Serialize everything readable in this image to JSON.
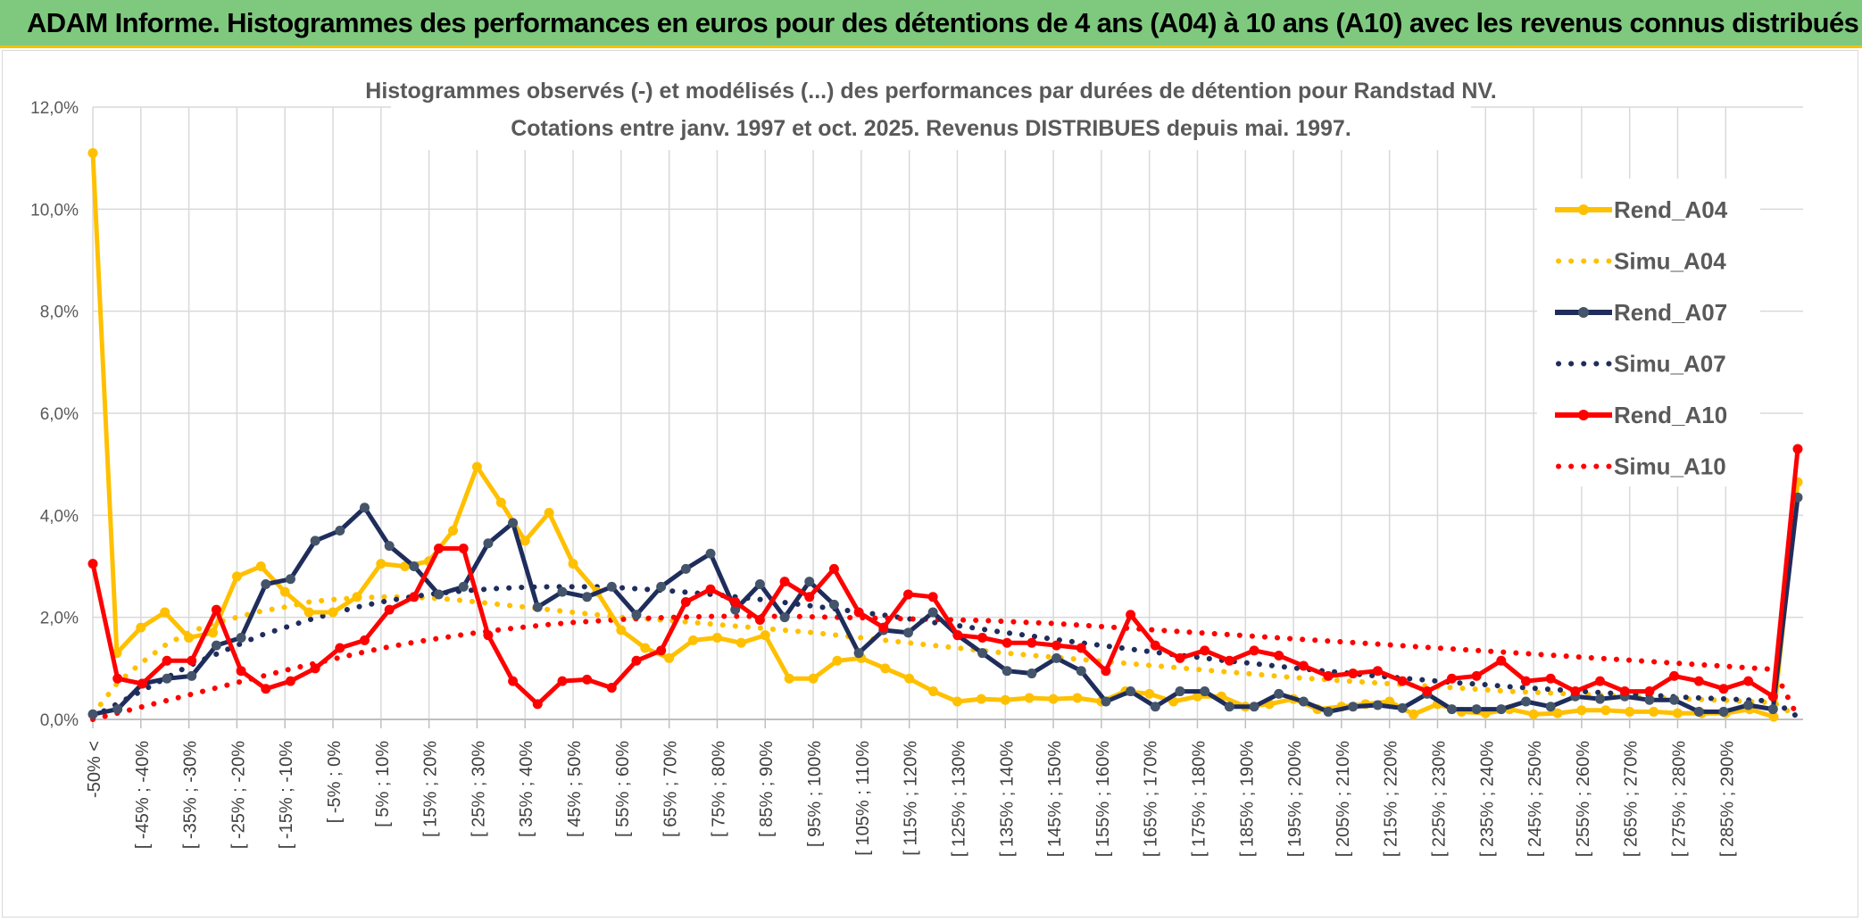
{
  "header": {
    "title": "ADAM Informe. Histogrammes des performances en euros pour des détentions de 4 ans (A04) à 10 ans (A10) avec les revenus connus distribués"
  },
  "chart_data": {
    "type": "line",
    "title": "Histogrammes observés (-) et modélisés (...) des performances par durées de détention pour Randstad NV.",
    "subtitle": "Cotations entre janv. 1997 et oct. 2025. Revenus DISTRIBUES depuis mai. 1997.",
    "xlabel": "",
    "ylabel": "",
    "ylim": [
      0,
      12
    ],
    "yticks": [
      "0,0%",
      "2,0%",
      "4,0%",
      "6,0%",
      "8,0%",
      "10,0%",
      "12,0%"
    ],
    "grid": true,
    "legend_position": "right",
    "x_tick_labels": [
      "-50% <",
      "[ -45% ; -40%",
      "[ -35% ; -30%",
      "[ -25% ; -20%",
      "[ -15% ; -10%",
      "[ -5% ; 0%",
      "[ 5% ; 10%",
      "[ 15% ; 20%",
      "[ 25% ; 30%",
      "[ 35% ; 40%",
      "[ 45% ; 50%",
      "[ 55% ; 60%",
      "[ 65% ; 70%",
      "[ 75% ; 80%",
      "[ 85% ; 90%",
      "[ 95% ; 100%",
      "[ 105% ; 110%",
      "[ 115% ; 120%",
      "[ 125% ; 130%",
      "[ 135% ; 140%",
      "[ 145% ; 150%",
      "[ 155% ; 160%",
      "[ 165% ; 170%",
      "[ 175% ; 180%",
      "[ 185% ; 190%",
      "[ 195% ; 200%",
      "[ 205% ; 210%",
      "[ 215% ; 220%",
      "[ 225% ; 230%",
      "[ 235% ; 240%",
      "[ 245% ; 250%",
      "[ 255% ; 260%",
      "[ 265% ; 270%",
      "[ 275% ; 280%",
      "[ 285% ; 290%"
    ],
    "series": [
      {
        "name": "Rend_A04",
        "color": "#ffc000",
        "style": "solid",
        "markers": true,
        "values": [
          11.1,
          1.3,
          1.8,
          2.1,
          1.6,
          1.7,
          2.8,
          3.0,
          2.5,
          2.1,
          2.1,
          2.4,
          3.05,
          3.0,
          3.1,
          3.7,
          4.95,
          4.25,
          3.5,
          4.05,
          3.05,
          2.5,
          1.75,
          1.4,
          1.2,
          1.55,
          1.6,
          1.5,
          1.65,
          0.8,
          0.8,
          1.15,
          1.2,
          1.0,
          0.8,
          0.55,
          0.35,
          0.4,
          0.38,
          0.42,
          0.4,
          0.42,
          0.35,
          0.55,
          0.5,
          0.35,
          0.45,
          0.45,
          0.25,
          0.3,
          0.4,
          0.2,
          0.25,
          0.3,
          0.35,
          0.1,
          0.3,
          0.15,
          0.12,
          0.2,
          0.1,
          0.12,
          0.18,
          0.18,
          0.15,
          0.15,
          0.12,
          0.12,
          0.12,
          0.2,
          0.05,
          4.65
        ]
      },
      {
        "name": "Simu_A04",
        "color": "#ffc000",
        "style": "dotted",
        "markers": false,
        "values": [
          0.1,
          0.7,
          1.1,
          1.45,
          1.7,
          1.88,
          2.0,
          2.12,
          2.2,
          2.3,
          2.35,
          2.38,
          2.4,
          2.4,
          2.38,
          2.35,
          2.3,
          2.25,
          2.2,
          2.15,
          2.1,
          2.05,
          2.0,
          1.97,
          1.94,
          1.9,
          1.86,
          1.82,
          1.78,
          1.74,
          1.7,
          1.65,
          1.6,
          1.55,
          1.5,
          1.45,
          1.4,
          1.35,
          1.3,
          1.26,
          1.22,
          1.18,
          1.14,
          1.1,
          1.06,
          1.02,
          0.98,
          0.94,
          0.9,
          0.86,
          0.82,
          0.79,
          0.76,
          0.73,
          0.7,
          0.67,
          0.64,
          0.61,
          0.58,
          0.55,
          0.53,
          0.51,
          0.49,
          0.47,
          0.45,
          0.43,
          0.41,
          0.39,
          0.37,
          0.35,
          0.33,
          0.05
        ]
      },
      {
        "name": "Rend_A07",
        "color": "#1f2d5c",
        "style": "solid",
        "markers": true,
        "values": [
          0.1,
          0.2,
          0.7,
          0.8,
          0.85,
          1.45,
          1.6,
          2.65,
          2.75,
          3.5,
          3.7,
          4.15,
          3.4,
          3.0,
          2.45,
          2.6,
          3.45,
          3.85,
          2.2,
          2.5,
          2.4,
          2.6,
          2.05,
          2.6,
          2.95,
          3.25,
          2.15,
          2.65,
          2.0,
          2.7,
          2.25,
          1.3,
          1.75,
          1.7,
          2.1,
          1.65,
          1.3,
          0.95,
          0.9,
          1.2,
          0.95,
          0.35,
          0.55,
          0.25,
          0.55,
          0.55,
          0.25,
          0.25,
          0.5,
          0.35,
          0.15,
          0.25,
          0.28,
          0.22,
          0.5,
          0.2,
          0.2,
          0.2,
          0.35,
          0.25,
          0.45,
          0.4,
          0.45,
          0.38,
          0.38,
          0.15,
          0.15,
          0.28,
          0.2,
          4.35
        ]
      },
      {
        "name": "Simu_A07",
        "color": "#1f2d5c",
        "style": "dotted",
        "markers": false,
        "values": [
          0.05,
          0.3,
          0.55,
          0.8,
          1.05,
          1.25,
          1.45,
          1.65,
          1.8,
          1.95,
          2.08,
          2.2,
          2.3,
          2.38,
          2.45,
          2.5,
          2.54,
          2.57,
          2.59,
          2.6,
          2.6,
          2.6,
          2.58,
          2.55,
          2.52,
          2.48,
          2.44,
          2.39,
          2.34,
          2.28,
          2.22,
          2.16,
          2.1,
          2.04,
          1.97,
          1.9,
          1.84,
          1.77,
          1.7,
          1.64,
          1.57,
          1.51,
          1.45,
          1.39,
          1.33,
          1.27,
          1.22,
          1.16,
          1.11,
          1.06,
          1.01,
          0.96,
          0.92,
          0.87,
          0.83,
          0.79,
          0.75,
          0.71,
          0.68,
          0.64,
          0.61,
          0.58,
          0.55,
          0.52,
          0.49,
          0.47,
          0.44,
          0.42,
          0.4,
          0.38,
          0.36,
          0.05
        ]
      },
      {
        "name": "Rend_A10",
        "color": "#ff0000",
        "style": "solid",
        "markers": true,
        "values": [
          3.05,
          0.8,
          0.7,
          1.15,
          1.15,
          2.15,
          0.95,
          0.6,
          0.75,
          1.0,
          1.4,
          1.55,
          2.15,
          2.4,
          3.35,
          3.35,
          1.65,
          0.75,
          0.3,
          0.75,
          0.78,
          0.62,
          1.15,
          1.35,
          2.3,
          2.55,
          2.3,
          1.95,
          2.7,
          2.4,
          2.95,
          2.1,
          1.8,
          2.45,
          2.4,
          1.65,
          1.6,
          1.5,
          1.5,
          1.45,
          1.4,
          0.95,
          2.05,
          1.45,
          1.2,
          1.35,
          1.15,
          1.35,
          1.25,
          1.05,
          0.85,
          0.9,
          0.95,
          0.75,
          0.55,
          0.8,
          0.85,
          1.15,
          0.75,
          0.8,
          0.55,
          0.75,
          0.55,
          0.55,
          0.85,
          0.75,
          0.6,
          0.75,
          0.45,
          5.3
        ]
      },
      {
        "name": "Simu_A10",
        "color": "#ff0000",
        "style": "dotted",
        "markers": false,
        "values": [
          0.0,
          0.12,
          0.24,
          0.36,
          0.48,
          0.6,
          0.72,
          0.84,
          0.96,
          1.07,
          1.18,
          1.29,
          1.39,
          1.48,
          1.56,
          1.63,
          1.7,
          1.76,
          1.81,
          1.86,
          1.9,
          1.93,
          1.96,
          1.98,
          2.0,
          2.01,
          2.02,
          2.02,
          2.02,
          2.02,
          2.01,
          2.0,
          1.99,
          1.98,
          1.97,
          1.96,
          1.95,
          1.94,
          1.92,
          1.9,
          1.88,
          1.85,
          1.82,
          1.79,
          1.76,
          1.73,
          1.7,
          1.67,
          1.64,
          1.61,
          1.58,
          1.55,
          1.52,
          1.49,
          1.46,
          1.43,
          1.4,
          1.37,
          1.34,
          1.31,
          1.28,
          1.25,
          1.22,
          1.19,
          1.16,
          1.13,
          1.1,
          1.07,
          1.04,
          1.01,
          0.98,
          0.05
        ]
      }
    ]
  }
}
